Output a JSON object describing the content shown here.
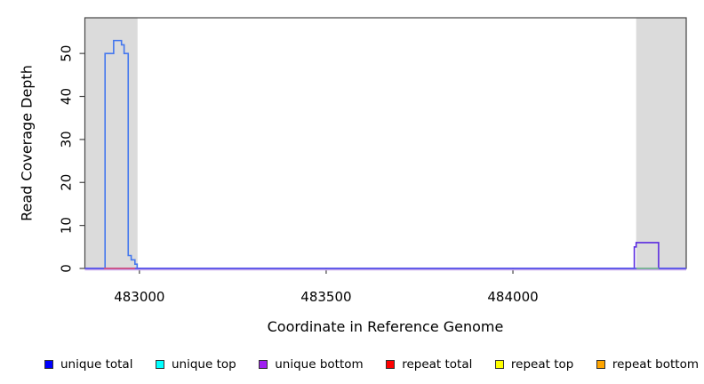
{
  "chart_data": {
    "type": "line",
    "title": "",
    "xlabel": "Coordinate in Reference Genome",
    "ylabel": "Read Coverage Depth",
    "xlim": [
      482854,
      484464
    ],
    "ylim": [
      0,
      58.3
    ],
    "x_ticks": [
      483000,
      483500,
      484000
    ],
    "y_ticks": [
      0,
      10,
      20,
      30,
      40,
      50
    ],
    "grid": false,
    "legend_position": "bottom",
    "shaded_regions": [
      {
        "x0": 482854,
        "x1": 482995,
        "color": "#DBDBDB"
      },
      {
        "x0": 484330,
        "x1": 484464,
        "color": "#DBDBDB"
      }
    ],
    "series": [
      {
        "name": "unique bottom",
        "display_color": "#5A2BE0",
        "points": [
          [
            482854,
            0
          ],
          [
            484325,
            0
          ],
          [
            484325,
            5
          ],
          [
            484330,
            5
          ],
          [
            484330,
            6
          ],
          [
            484390,
            6
          ],
          [
            484390,
            0
          ],
          [
            484464,
            0
          ]
        ]
      },
      {
        "name": "unique total",
        "display_color": "#4477EE",
        "points": [
          [
            482854,
            0
          ],
          [
            482908,
            0
          ],
          [
            482908,
            50
          ],
          [
            482931,
            50
          ],
          [
            482931,
            53
          ],
          [
            482952,
            53
          ],
          [
            482952,
            52
          ],
          [
            482959,
            52
          ],
          [
            482959,
            50
          ],
          [
            482970,
            50
          ],
          [
            482970,
            3
          ],
          [
            482978,
            3
          ],
          [
            482978,
            2
          ],
          [
            482988,
            2
          ],
          [
            482988,
            1
          ],
          [
            482994,
            1
          ],
          [
            482994,
            0
          ],
          [
            484464,
            0
          ]
        ]
      }
    ],
    "baseline_overlap_segments": [
      {
        "color": "#C9A9EC",
        "x0": 482854,
        "x1": 484464,
        "offset": 1.6
      },
      {
        "color": "#5A50EA",
        "x0": 482854,
        "x1": 484464,
        "offset": 0
      },
      {
        "color": "#E8506E",
        "x0": 482905,
        "x1": 482988,
        "offset": 0
      },
      {
        "color": "#7FC87F",
        "x0": 484331,
        "x1": 484390,
        "offset": 0
      }
    ]
  },
  "legend": {
    "items": [
      {
        "label": "unique total",
        "color": "#0000FF"
      },
      {
        "label": "unique top",
        "color": "#00FFFF"
      },
      {
        "label": "unique bottom",
        "color": "#A020F0"
      },
      {
        "label": "repeat total",
        "color": "#FF0000"
      },
      {
        "label": "repeat top",
        "color": "#FFFF00"
      },
      {
        "label": "repeat bottom",
        "color": "#FFA500"
      }
    ]
  }
}
